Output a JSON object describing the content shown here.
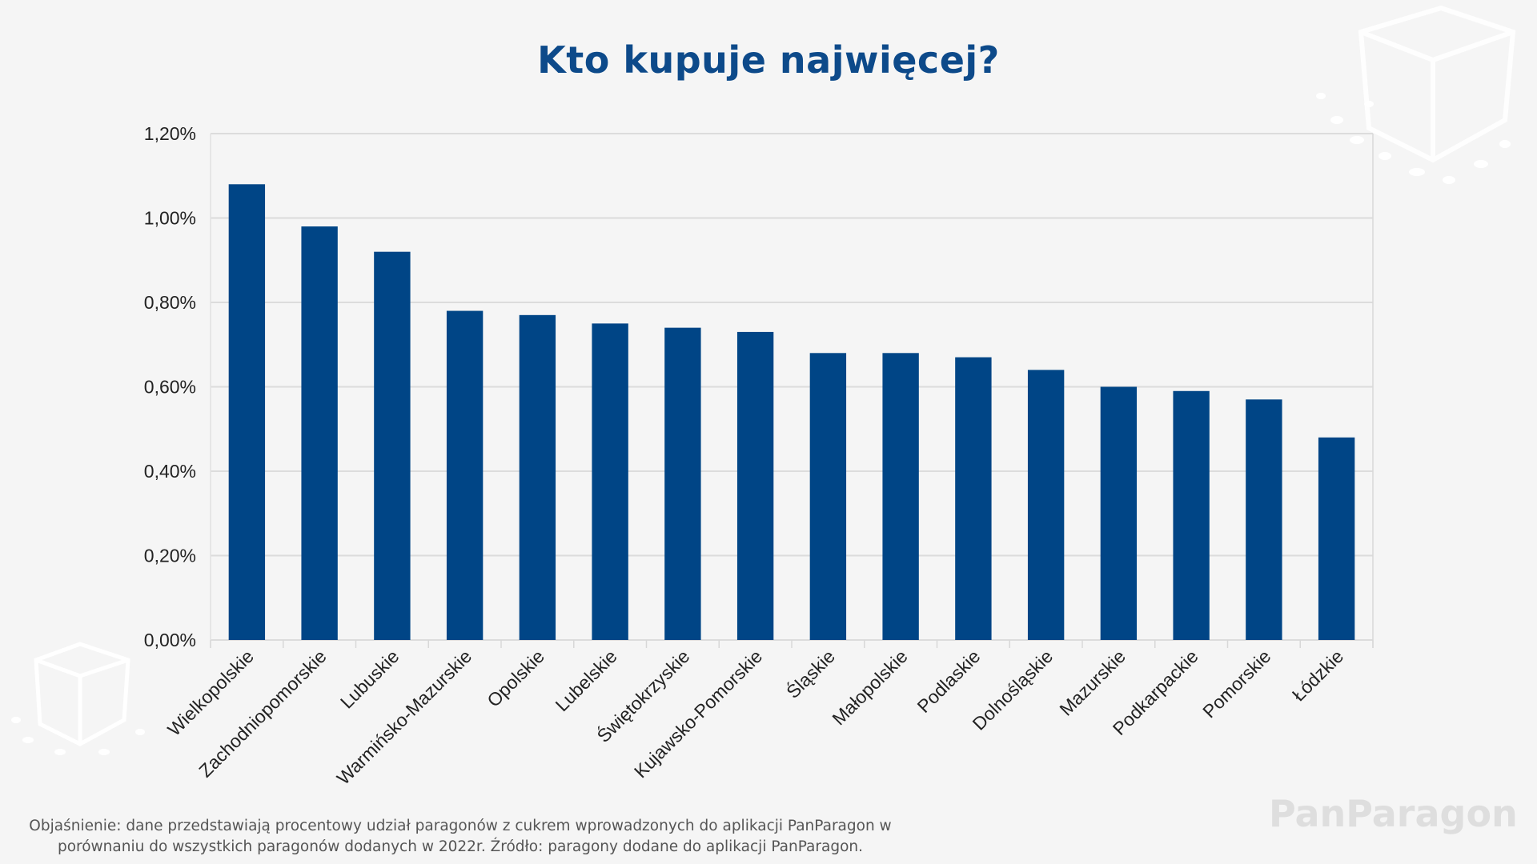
{
  "title": "Kto kupuje najwięcej?",
  "note_line1": "Objaśnienie: dane przedstawiają procentowy udział paragonów z cukrem  wprowadzonych do aplikacji PanParagon  w",
  "note_line2": "porównaniu do wszystkich paragonów dodanych w 2022r. Źródło: paragony dodane do aplikacji PanParagon.",
  "brand": "PanParagon",
  "colors": {
    "bar": "#004586",
    "title": "#0d4a8a",
    "grid": "#dcdcdc"
  },
  "chart_data": {
    "type": "bar",
    "title": "Kto kupuje najwięcej?",
    "xlabel": "",
    "ylabel": "",
    "ylim": [
      0,
      1.2
    ],
    "y_unit": "%",
    "yticks": [
      "0,00%",
      "0,20%",
      "0,40%",
      "0,60%",
      "0,80%",
      "1,00%",
      "1,20%"
    ],
    "grid": true,
    "categories": [
      "Wielkopolskie",
      "Zachodniopomorskie",
      "Lubuskie",
      "Warmińsko-Mazurskie",
      "Opolskie",
      "Lubelskie",
      "Świętokrzyskie",
      "Kujawsko-Pomorskie",
      "Śląskie",
      "Małopolskie",
      "Podlaskie",
      "Dolnośląskie",
      "Mazurskie",
      "Podkarpackie",
      "Pomorskie",
      "Łódzkie"
    ],
    "values": [
      1.08,
      0.98,
      0.92,
      0.78,
      0.77,
      0.75,
      0.74,
      0.73,
      0.68,
      0.68,
      0.67,
      0.64,
      0.6,
      0.59,
      0.57,
      0.48
    ]
  }
}
